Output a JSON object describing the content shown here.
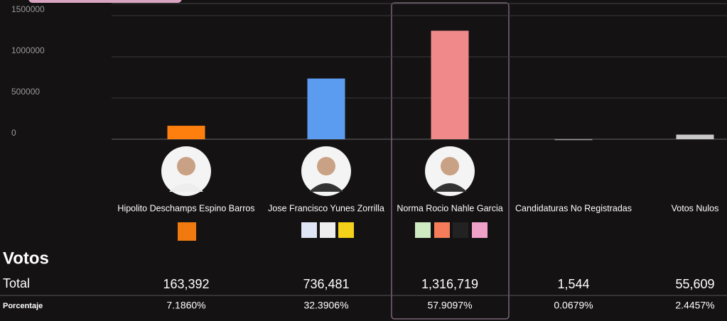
{
  "chart_data": {
    "type": "bar",
    "categories": [
      "Hipolito Deschamps Espino Barros",
      "Jose Francisco Yunes Zorrilla",
      "Norma Rocio Nahle Garcia",
      "Candidaturas No Registradas",
      "Votos Nulos"
    ],
    "values": [
      163392,
      736481,
      1316719,
      1544,
      55609
    ],
    "value_labels": [
      "163,392",
      "736,481",
      "1,316,719",
      "1,544",
      "55,609"
    ],
    "colors": [
      "#ff7f0e",
      "#5b9cf0",
      "#f08a8a",
      "#9a9a9a",
      "#c8c8c8"
    ],
    "ylim": [
      0,
      1500000
    ],
    "yticks": [
      0,
      500000,
      1000000,
      1500000
    ],
    "grid": true
  },
  "table": {
    "title": "Votos",
    "total_label": "Total",
    "percent_label": "Porcentaje",
    "percentages": [
      "7.1860%",
      "32.3906%",
      "57.9097%",
      "0.0679%",
      "2.4457%"
    ]
  }
}
